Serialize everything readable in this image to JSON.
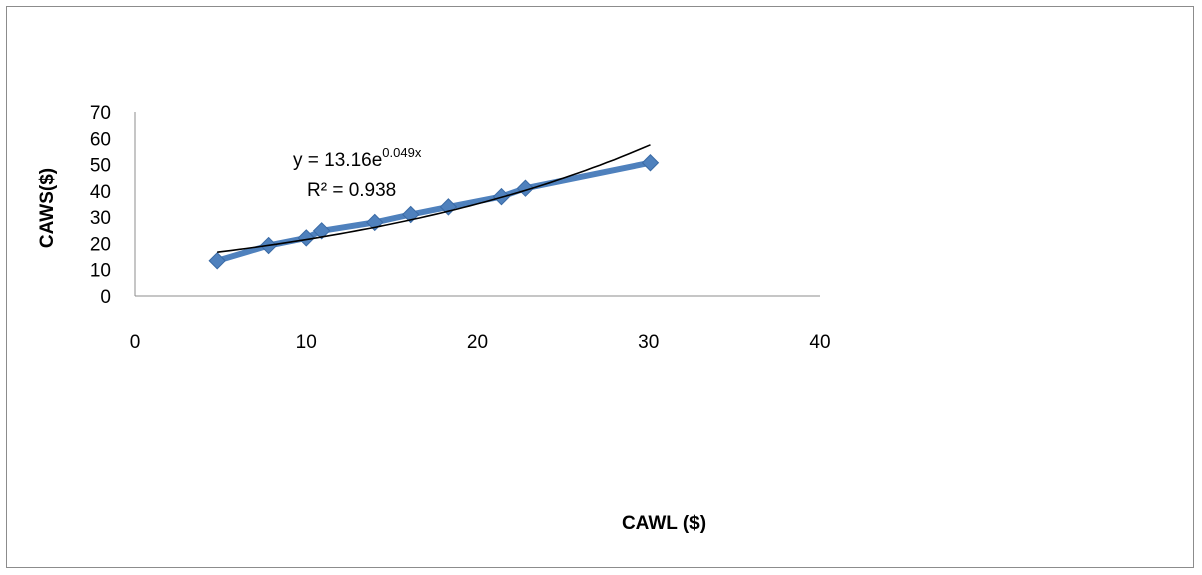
{
  "chart_data": {
    "type": "scatter",
    "xlabel": "CAWL ($)",
    "ylabel": "CAWS($)",
    "xlim": [
      0,
      40
    ],
    "ylim": [
      0,
      70
    ],
    "x_ticks": [
      "0",
      "10",
      "20",
      "30",
      "40"
    ],
    "y_ticks": [
      "0",
      "10",
      "20",
      "30",
      "40",
      "50",
      "60",
      "70"
    ],
    "grid": false,
    "series": [
      {
        "marker": "diamond",
        "connected": true,
        "color": "#4f81bd",
        "points": [
          {
            "x": 4.8,
            "y": 13.4
          },
          {
            "x": 7.8,
            "y": 19.2
          },
          {
            "x": 10.0,
            "y": 22.1
          },
          {
            "x": 10.9,
            "y": 24.8
          },
          {
            "x": 14.0,
            "y": 28.0
          },
          {
            "x": 16.1,
            "y": 31.0
          },
          {
            "x": 18.3,
            "y": 33.9
          },
          {
            "x": 21.4,
            "y": 37.8
          },
          {
            "x": 22.8,
            "y": 41.0
          },
          {
            "x": 30.1,
            "y": 50.7
          }
        ]
      }
    ],
    "trendline": {
      "type": "exponential",
      "a": 13.16,
      "b": 0.049,
      "x_range": [
        4.8,
        30.1
      ],
      "color": "#000000",
      "equation_prefix": "y = 13.16e",
      "equation_exponent": "0.049x",
      "r_squared": "R² = 0.938"
    }
  }
}
